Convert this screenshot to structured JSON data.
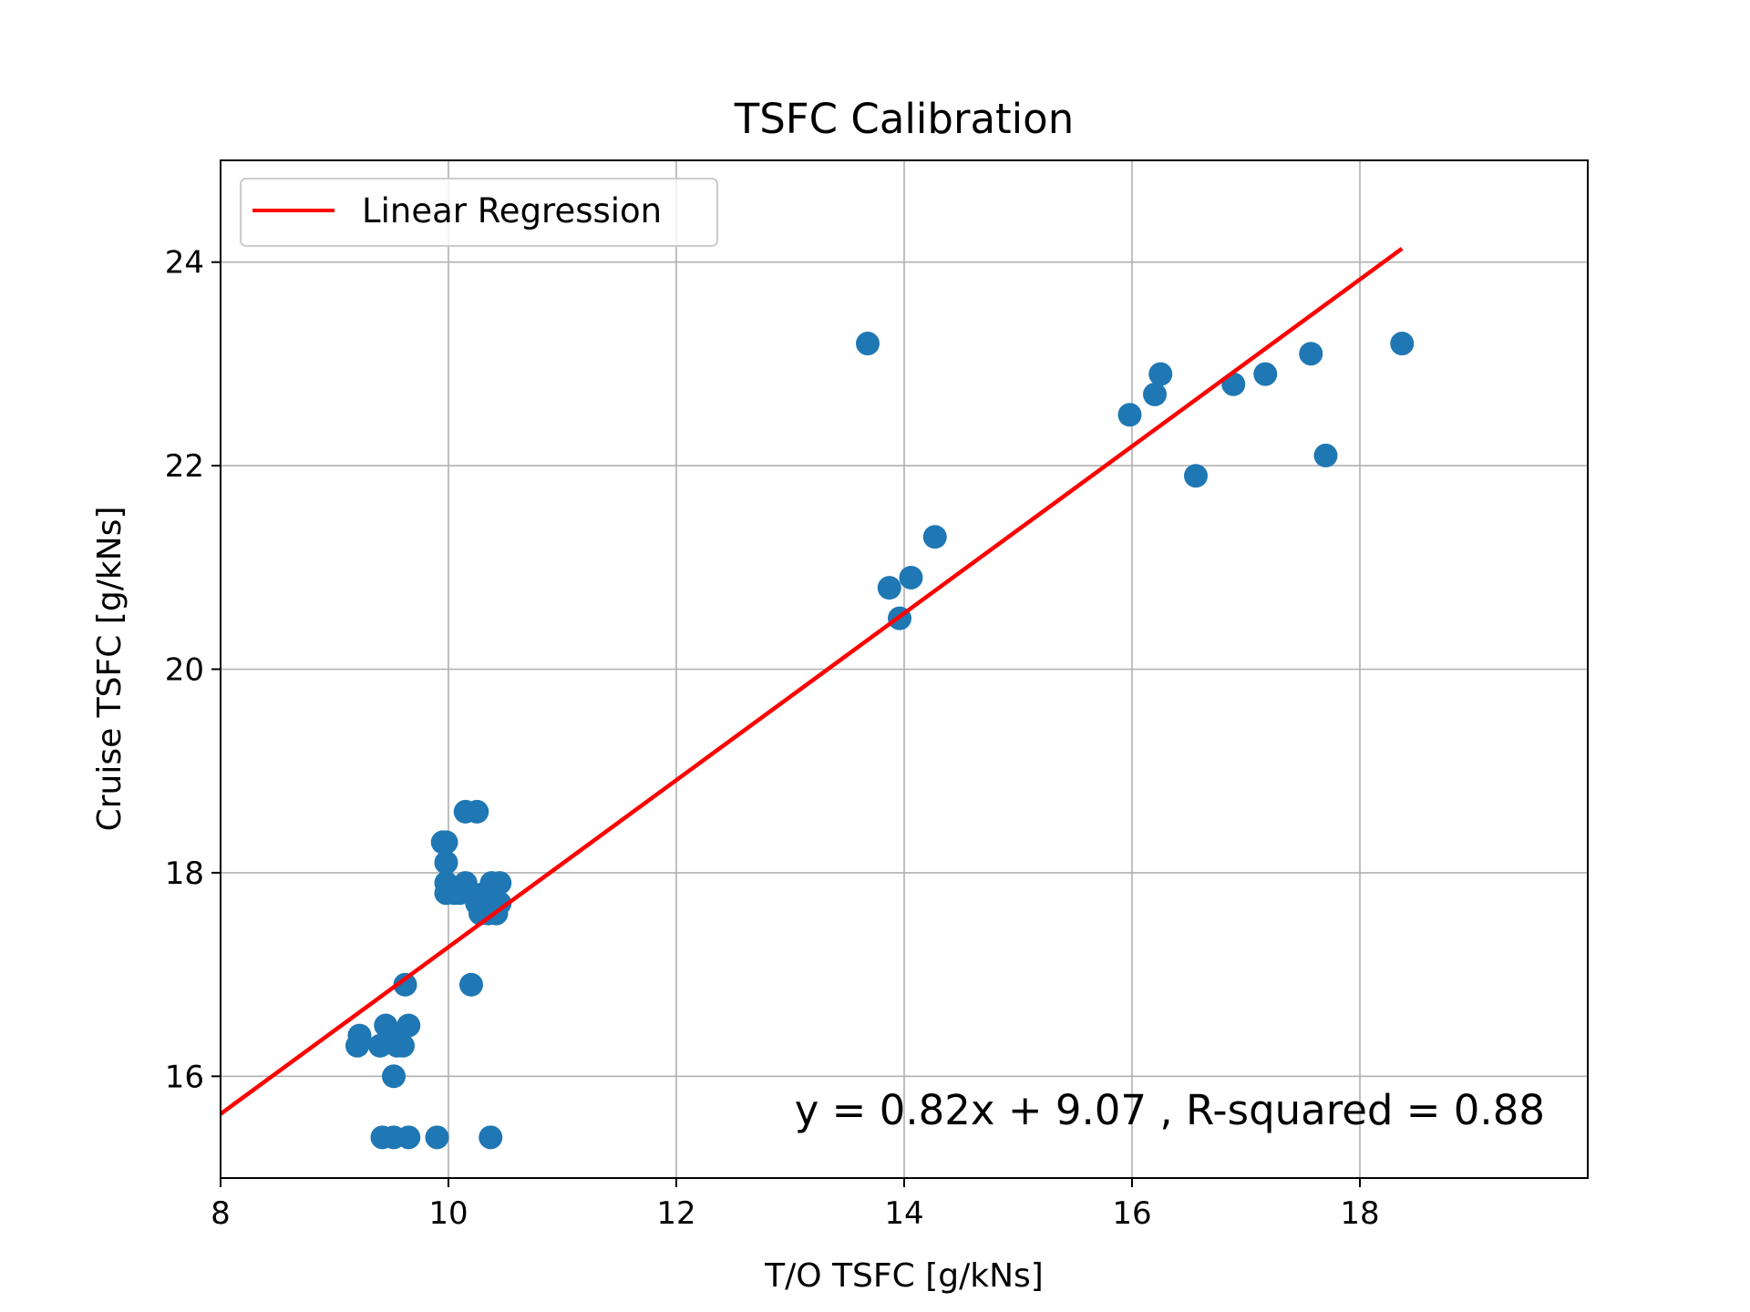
{
  "chart_data": {
    "type": "scatter",
    "title": "TSFC Calibration",
    "xlabel": "T/O TSFC [g/kNs]",
    "ylabel": "Cruise TSFC [g/kNs]",
    "xlim": [
      8,
      20
    ],
    "ylim": [
      15,
      25
    ],
    "xticks": [
      8,
      10,
      12,
      14,
      16,
      18
    ],
    "yticks": [
      16,
      18,
      20,
      22,
      24
    ],
    "grid": true,
    "legend": {
      "placement": "upper-left",
      "entries": [
        "Linear Regression"
      ]
    },
    "colors": {
      "points": "#1f77b4",
      "regression": "#ff0000"
    },
    "points": [
      [
        9.2,
        16.3
      ],
      [
        9.22,
        16.4
      ],
      [
        9.4,
        16.3
      ],
      [
        9.45,
        16.5
      ],
      [
        9.5,
        16.4
      ],
      [
        9.55,
        16.3
      ],
      [
        9.6,
        16.3
      ],
      [
        9.65,
        16.5
      ],
      [
        9.52,
        16.0
      ],
      [
        9.62,
        16.9
      ],
      [
        9.42,
        15.4
      ],
      [
        9.52,
        15.4
      ],
      [
        9.65,
        15.4
      ],
      [
        9.9,
        15.4
      ],
      [
        10.37,
        15.4
      ],
      [
        9.95,
        18.3
      ],
      [
        9.98,
        18.3
      ],
      [
        9.98,
        18.1
      ],
      [
        9.98,
        17.9
      ],
      [
        9.98,
        17.8
      ],
      [
        10.05,
        17.8
      ],
      [
        10.1,
        17.8
      ],
      [
        10.15,
        17.9
      ],
      [
        10.2,
        17.8
      ],
      [
        10.25,
        17.7
      ],
      [
        10.28,
        17.6
      ],
      [
        10.3,
        17.7
      ],
      [
        10.32,
        17.8
      ],
      [
        10.35,
        17.6
      ],
      [
        10.38,
        17.9
      ],
      [
        10.4,
        17.7
      ],
      [
        10.42,
        17.6
      ],
      [
        10.45,
        17.9
      ],
      [
        10.45,
        17.7
      ],
      [
        10.15,
        18.6
      ],
      [
        10.25,
        18.6
      ],
      [
        10.2,
        16.9
      ],
      [
        13.68,
        23.2
      ],
      [
        13.87,
        20.8
      ],
      [
        13.96,
        20.5
      ],
      [
        14.06,
        20.9
      ],
      [
        14.27,
        21.3
      ],
      [
        15.98,
        22.5
      ],
      [
        16.2,
        22.7
      ],
      [
        16.25,
        22.9
      ],
      [
        16.56,
        21.9
      ],
      [
        16.89,
        22.8
      ],
      [
        17.17,
        22.9
      ],
      [
        17.57,
        23.1
      ],
      [
        17.7,
        22.1
      ],
      [
        18.37,
        23.2
      ]
    ],
    "regression": {
      "slope": 0.82,
      "intercept": 9.07,
      "x_range": [
        8,
        18.37
      ]
    },
    "annotation": "y = 0.82x + 9.07 , R-squared = 0.88"
  }
}
